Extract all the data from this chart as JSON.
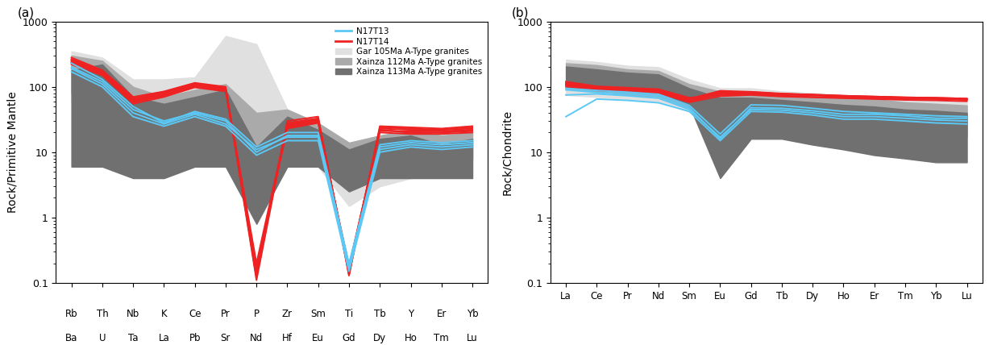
{
  "panel_a": {
    "elements_top": [
      "Rb",
      "Th",
      "Nb",
      "K",
      "Ce",
      "Pr",
      "P",
      "Zr",
      "Sm",
      "Ti",
      "Tb",
      "Y",
      "Er",
      "Yb"
    ],
    "elements_bottom": [
      "Ba",
      "U",
      "Ta",
      "La",
      "Pb",
      "Sr",
      "Nd",
      "Hf",
      "Eu",
      "Gd",
      "Dy",
      "Ho",
      "Tm",
      "Lu"
    ],
    "ylabel": "Rock/Primitive Mantle",
    "ylim": [
      0.1,
      1000
    ],
    "N17T13": [
      [
        200,
        120,
        45,
        30,
        40,
        30,
        10,
        18,
        18,
        0.17,
        12,
        14,
        13,
        14
      ],
      [
        230,
        130,
        50,
        28,
        42,
        32,
        12,
        20,
        20,
        0.2,
        13,
        15,
        14,
        15
      ],
      [
        170,
        100,
        35,
        25,
        35,
        25,
        9,
        15,
        15,
        0.15,
        10,
        12,
        11,
        12
      ],
      [
        190,
        110,
        40,
        27,
        38,
        27,
        11,
        17,
        17,
        0.18,
        11,
        13,
        12,
        13
      ]
    ],
    "N17T14": [
      [
        260,
        170,
        65,
        80,
        110,
        95,
        0.2,
        27,
        32,
        0.14,
        23,
        22,
        22,
        23
      ],
      [
        240,
        160,
        60,
        75,
        105,
        90,
        0.15,
        25,
        30,
        0.16,
        22,
        20,
        20,
        22
      ],
      [
        280,
        180,
        70,
        85,
        115,
        100,
        0.12,
        30,
        35,
        0.13,
        25,
        24,
        23,
        25
      ],
      [
        220,
        150,
        55,
        70,
        98,
        85,
        0.18,
        23,
        28,
        0.18,
        20,
        19,
        19,
        20
      ],
      [
        250,
        165,
        62,
        78,
        108,
        92,
        0.14,
        26,
        31,
        0.15,
        21,
        21,
        21,
        22
      ],
      [
        235,
        155,
        58,
        73,
        102,
        88,
        0.17,
        24,
        29,
        0.17,
        22,
        20,
        20,
        21
      ],
      [
        265,
        175,
        67,
        82,
        112,
        97,
        0.11,
        28,
        33,
        0.13,
        24,
        23,
        22,
        24
      ]
    ],
    "gar105_upper": [
      350,
      280,
      130,
      130,
      140,
      600,
      450,
      45,
      25,
      10,
      12,
      15,
      20,
      22
    ],
    "gar105_lower": [
      60,
      40,
      20,
      15,
      18,
      20,
      0.8,
      6,
      6,
      1.5,
      3,
      4,
      6,
      7
    ],
    "xainza112_upper": [
      300,
      250,
      100,
      70,
      90,
      110,
      40,
      45,
      28,
      14,
      18,
      22,
      18,
      20
    ],
    "xainza112_lower": [
      80,
      60,
      30,
      12,
      20,
      25,
      4,
      10,
      8,
      4,
      6,
      7,
      7,
      8
    ],
    "xainza113_upper": [
      180,
      220,
      70,
      55,
      70,
      90,
      12,
      35,
      22,
      11,
      16,
      18,
      13,
      16
    ],
    "xainza113_lower": [
      6,
      6,
      4,
      4,
      6,
      6,
      0.8,
      6,
      6,
      2.5,
      4,
      4,
      4,
      4
    ]
  },
  "panel_b": {
    "elements": [
      "La",
      "Ce",
      "Pr",
      "Nd",
      "Sm",
      "Eu",
      "Gd",
      "Tb",
      "Dy",
      "Ho",
      "Er",
      "Tm",
      "Yb",
      "Lu"
    ],
    "ylabel": "Rock/Chondrite",
    "ylim": [
      0.1,
      1000
    ],
    "N17T13": [
      [
        90,
        82,
        78,
        72,
        48,
        16,
        48,
        47,
        43,
        38,
        38,
        36,
        33,
        33
      ],
      [
        95,
        88,
        83,
        77,
        52,
        19,
        53,
        52,
        47,
        42,
        40,
        38,
        36,
        35
      ],
      [
        35,
        65,
        62,
        57,
        42,
        15,
        42,
        41,
        37,
        32,
        32,
        30,
        28,
        27
      ],
      [
        75,
        78,
        73,
        67,
        45,
        17,
        45,
        44,
        40,
        35,
        35,
        33,
        31,
        30
      ]
    ],
    "N17T14": [
      [
        120,
        102,
        97,
        92,
        68,
        75,
        78,
        73,
        70,
        68,
        67,
        65,
        65,
        63
      ],
      [
        110,
        96,
        91,
        86,
        63,
        82,
        83,
        78,
        76,
        73,
        71,
        69,
        68,
        66
      ],
      [
        105,
        91,
        89,
        83,
        60,
        78,
        80,
        76,
        74,
        71,
        69,
        67,
        66,
        64
      ],
      [
        115,
        99,
        94,
        89,
        66,
        85,
        82,
        78,
        75,
        72,
        70,
        68,
        67,
        65
      ],
      [
        108,
        94,
        92,
        86,
        63,
        80,
        81,
        77,
        75,
        71,
        70,
        68,
        66,
        64
      ],
      [
        100,
        88,
        85,
        80,
        58,
        72,
        75,
        71,
        69,
        67,
        65,
        63,
        62,
        60
      ],
      [
        112,
        97,
        93,
        88,
        65,
        87,
        84,
        79,
        76,
        73,
        71,
        69,
        68,
        66
      ]
    ],
    "gar105_upper": [
      260,
      240,
      210,
      200,
      130,
      95,
      95,
      85,
      80,
      75,
      72,
      65,
      62,
      58
    ],
    "gar105_lower": [
      75,
      70,
      65,
      60,
      42,
      32,
      37,
      35,
      32,
      30,
      28,
      26,
      24,
      23
    ],
    "xainza112_upper": [
      230,
      215,
      185,
      175,
      110,
      85,
      85,
      76,
      72,
      68,
      65,
      58,
      55,
      52
    ],
    "xainza112_lower": [
      95,
      85,
      76,
      71,
      47,
      28,
      32,
      30,
      27,
      25,
      23,
      20,
      18,
      17
    ],
    "xainza113_upper": [
      205,
      185,
      165,
      155,
      95,
      68,
      68,
      63,
      58,
      53,
      50,
      45,
      43,
      40
    ],
    "xainza113_lower": [
      115,
      105,
      90,
      85,
      52,
      4,
      16,
      16,
      13,
      11,
      9,
      8,
      7,
      7
    ]
  },
  "colors": {
    "N17T13": "#5BC8F5",
    "N17T14": "#EE2222",
    "gar105": "#E0E0E0",
    "xainza112": "#AAAAAA",
    "xainza113": "#707070"
  },
  "legend_labels": {
    "N17T13": "N17T13",
    "N17T14": "N17T14",
    "gar105": "Gar 105Ma A-Type granites",
    "xainza112": "Xainza 112Ma A-Type granites",
    "xainza113": "Xainza 113Ma A-Type granites"
  }
}
